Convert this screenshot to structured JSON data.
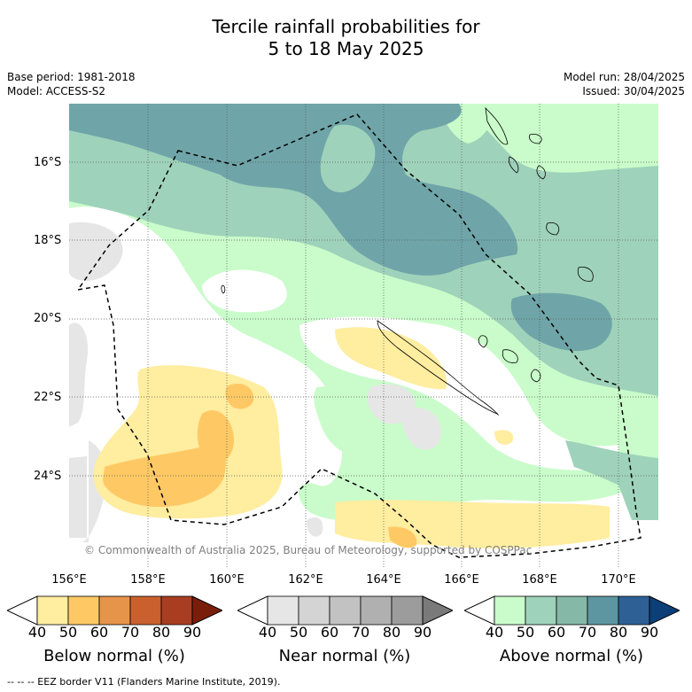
{
  "title": {
    "line1": "Tercile rainfall probabilities for",
    "line2": "5 to 18 May 2025"
  },
  "meta": {
    "base_period": "Base period: 1981-2018",
    "model": "Model: ACCESS-S2",
    "model_run": "Model run: 28/04/2025",
    "issued": "Issued: 30/04/2025"
  },
  "map": {
    "lat_labels": [
      "16°S",
      "18°S",
      "20°S",
      "22°S",
      "24°S"
    ],
    "lon_labels": [
      "156°E",
      "158°E",
      "160°E",
      "162°E",
      "164°E",
      "166°E",
      "168°E",
      "170°E"
    ],
    "copyright": "© Commonwealth of Australia 2025, Bureau of Meteorology, supported by COSPPac"
  },
  "colorbars": [
    {
      "name": "below",
      "label": "Below normal (%)",
      "ticks": [
        "40",
        "50",
        "60",
        "70",
        "80",
        "90"
      ],
      "colors": [
        "#ffffff",
        "#ffeda0",
        "#fec965",
        "#e6944a",
        "#c9602e",
        "#a83d22",
        "#7a1e0c"
      ]
    },
    {
      "name": "near",
      "label": "Near normal (%)",
      "ticks": [
        "40",
        "50",
        "60",
        "70",
        "80",
        "90"
      ],
      "colors": [
        "#ffffff",
        "#e6e6e6",
        "#d4d4d4",
        "#c2c2c2",
        "#b0b0b0",
        "#9c9c9c",
        "#7a7a7a"
      ]
    },
    {
      "name": "above",
      "label": "Above normal (%)",
      "ticks": [
        "40",
        "50",
        "60",
        "70",
        "80",
        "90"
      ],
      "colors": [
        "#ffffff",
        "#c9fcca",
        "#9fd2ba",
        "#86b8a8",
        "#5d96a0",
        "#2e6096",
        "#0c3f77"
      ]
    }
  ],
  "footnote": "--  --  -- EEZ border V11 (Flanders Marine Institute, 2019)."
}
